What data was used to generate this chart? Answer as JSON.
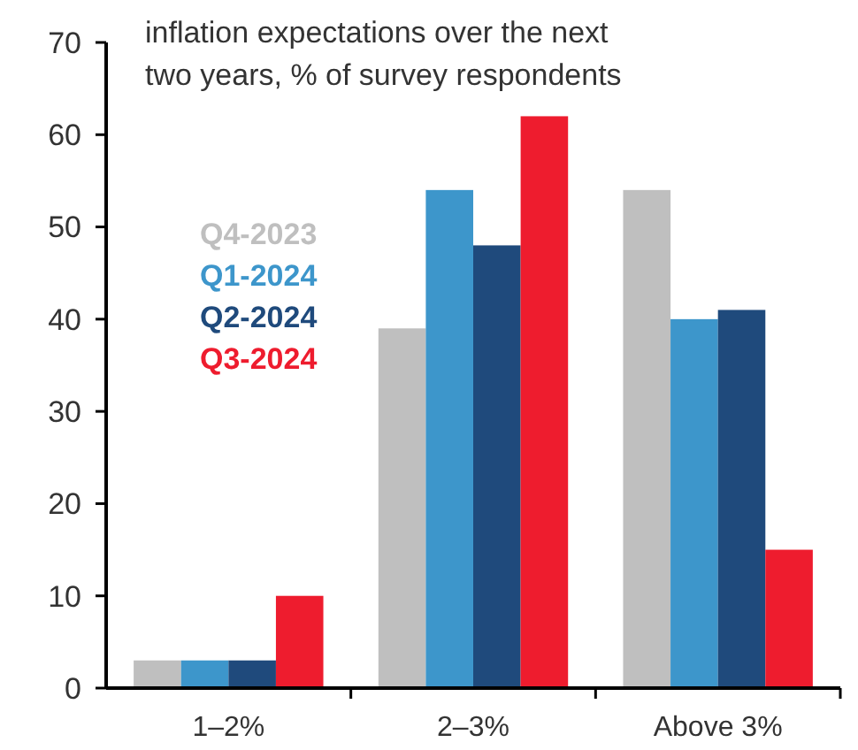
{
  "chart_data": {
    "type": "bar",
    "title": "inflation expectations over the next two years, % of survey respondents",
    "categories": [
      "1–2%",
      "2–3%",
      "Above 3%"
    ],
    "series": [
      {
        "name": "Q4-2023",
        "color": "#bfbfbf",
        "values": [
          3,
          39,
          54
        ]
      },
      {
        "name": "Q1-2024",
        "color": "#3d96cb",
        "values": [
          3,
          54,
          40
        ]
      },
      {
        "name": "Q2-2024",
        "color": "#1f4a7c",
        "values": [
          3,
          48,
          41
        ]
      },
      {
        "name": "Q3-2024",
        "color": "#ee1c2e",
        "values": [
          10,
          62,
          15
        ]
      }
    ],
    "ylim": [
      0,
      70
    ],
    "yticks": [
      0,
      10,
      20,
      30,
      40,
      50,
      60,
      70
    ],
    "legend": "top left"
  }
}
